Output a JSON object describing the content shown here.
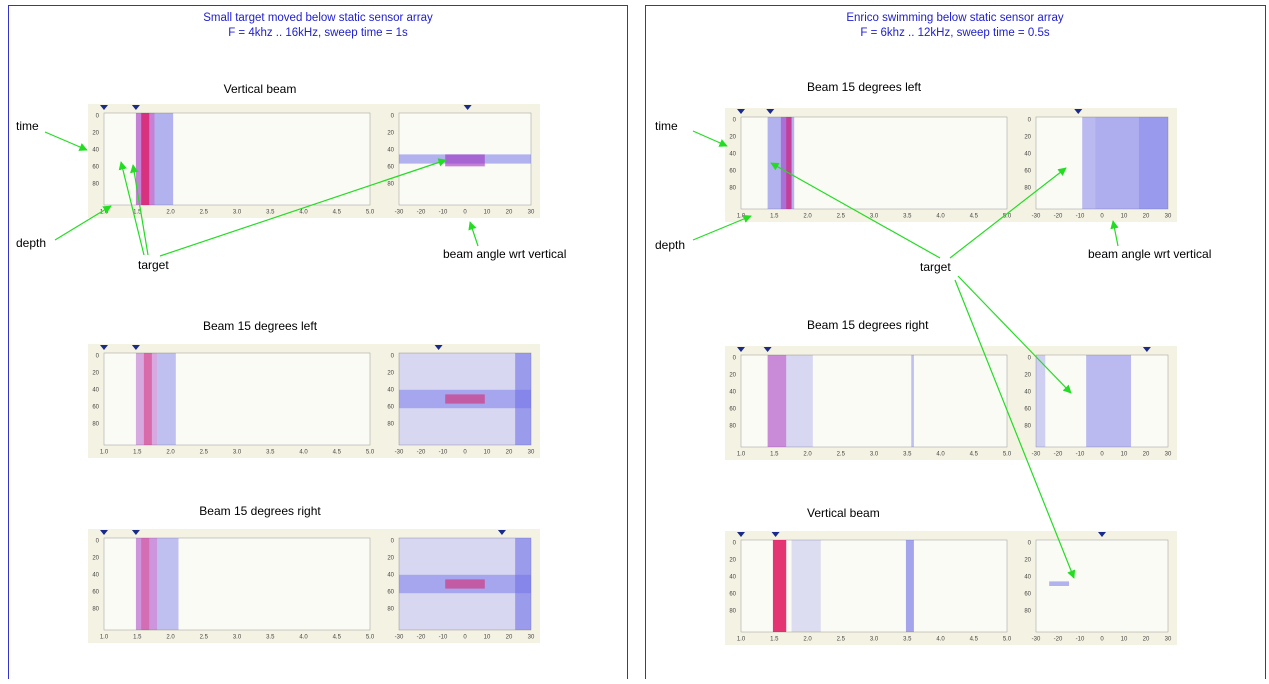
{
  "panels": [
    {
      "title": "Small target moved below static sensor array",
      "subtitle": "F = 4khz .. 16kHz, sweep time = 1s",
      "sections": [
        {
          "heading": "Vertical beam"
        },
        {
          "heading": "Beam 15 degrees left"
        },
        {
          "heading": "Beam 15 degrees right"
        }
      ],
      "annotations": {
        "time": "time",
        "depth": "depth",
        "target": "target",
        "beam_angle": "beam angle wrt vertical"
      }
    },
    {
      "title": "Enrico swimming below static sensor array",
      "subtitle": "F = 6khz .. 12kHz, sweep time = 0.5s",
      "sections": [
        {
          "heading": "Beam 15 degrees left"
        },
        {
          "heading": "Beam 15 degrees right"
        },
        {
          "heading": "Vertical beam"
        }
      ],
      "annotations": {
        "time": "time",
        "depth": "depth",
        "target": "target",
        "beam_angle": "beam angle wrt vertical"
      }
    }
  ],
  "axes": {
    "time": [
      "0",
      "20",
      "40",
      "60",
      "80"
    ],
    "depth": [
      "1.0",
      "1.5",
      "2.0",
      "2.5",
      "3.0",
      "3.5",
      "4.0",
      "4.5",
      "5.0"
    ],
    "angle": [
      "-30",
      "-20",
      "-10",
      "0",
      "10",
      "20",
      "30"
    ]
  }
}
